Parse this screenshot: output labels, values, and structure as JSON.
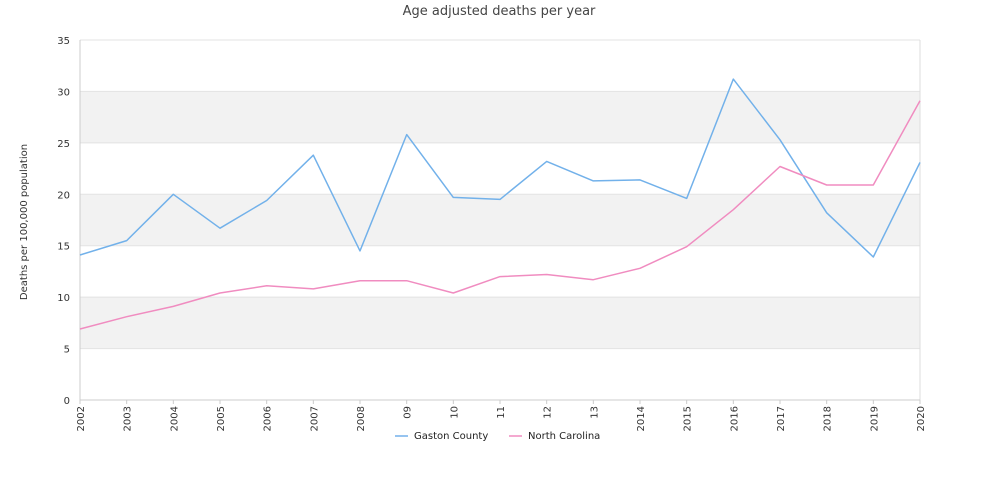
{
  "chart_data": {
    "type": "line",
    "title": "Age adjusted deaths per year",
    "xlabel": "",
    "ylabel": "Deaths per 100,000 population",
    "ylim": [
      0,
      35
    ],
    "yticks": [
      "0",
      "5",
      "10",
      "15",
      "20",
      "25",
      "30",
      "35"
    ],
    "categories": [
      "2002",
      "2003",
      "2004",
      "2005",
      "2006",
      "2007",
      "2008",
      "09",
      "10",
      "11",
      "12",
      "13",
      "2014",
      "2015",
      "2016",
      "2017",
      "2018",
      "2019",
      "2020"
    ],
    "grid": "horizontal alternating bands",
    "legend_position": "bottom",
    "series": [
      {
        "name": "Gaston County",
        "color": "#72b1ea",
        "values": [
          14.1,
          15.5,
          20.0,
          16.7,
          19.4,
          23.8,
          14.5,
          25.8,
          19.7,
          19.5,
          23.2,
          21.3,
          21.4,
          19.6,
          31.2,
          25.3,
          18.2,
          13.9,
          23.1
        ]
      },
      {
        "name": "North Carolina",
        "color": "#f08cc0",
        "values": [
          6.9,
          8.1,
          9.1,
          10.4,
          11.1,
          10.8,
          11.6,
          11.6,
          10.4,
          12.0,
          12.2,
          11.7,
          12.8,
          14.9,
          18.5,
          22.7,
          20.9,
          20.9,
          29.1
        ]
      }
    ]
  }
}
